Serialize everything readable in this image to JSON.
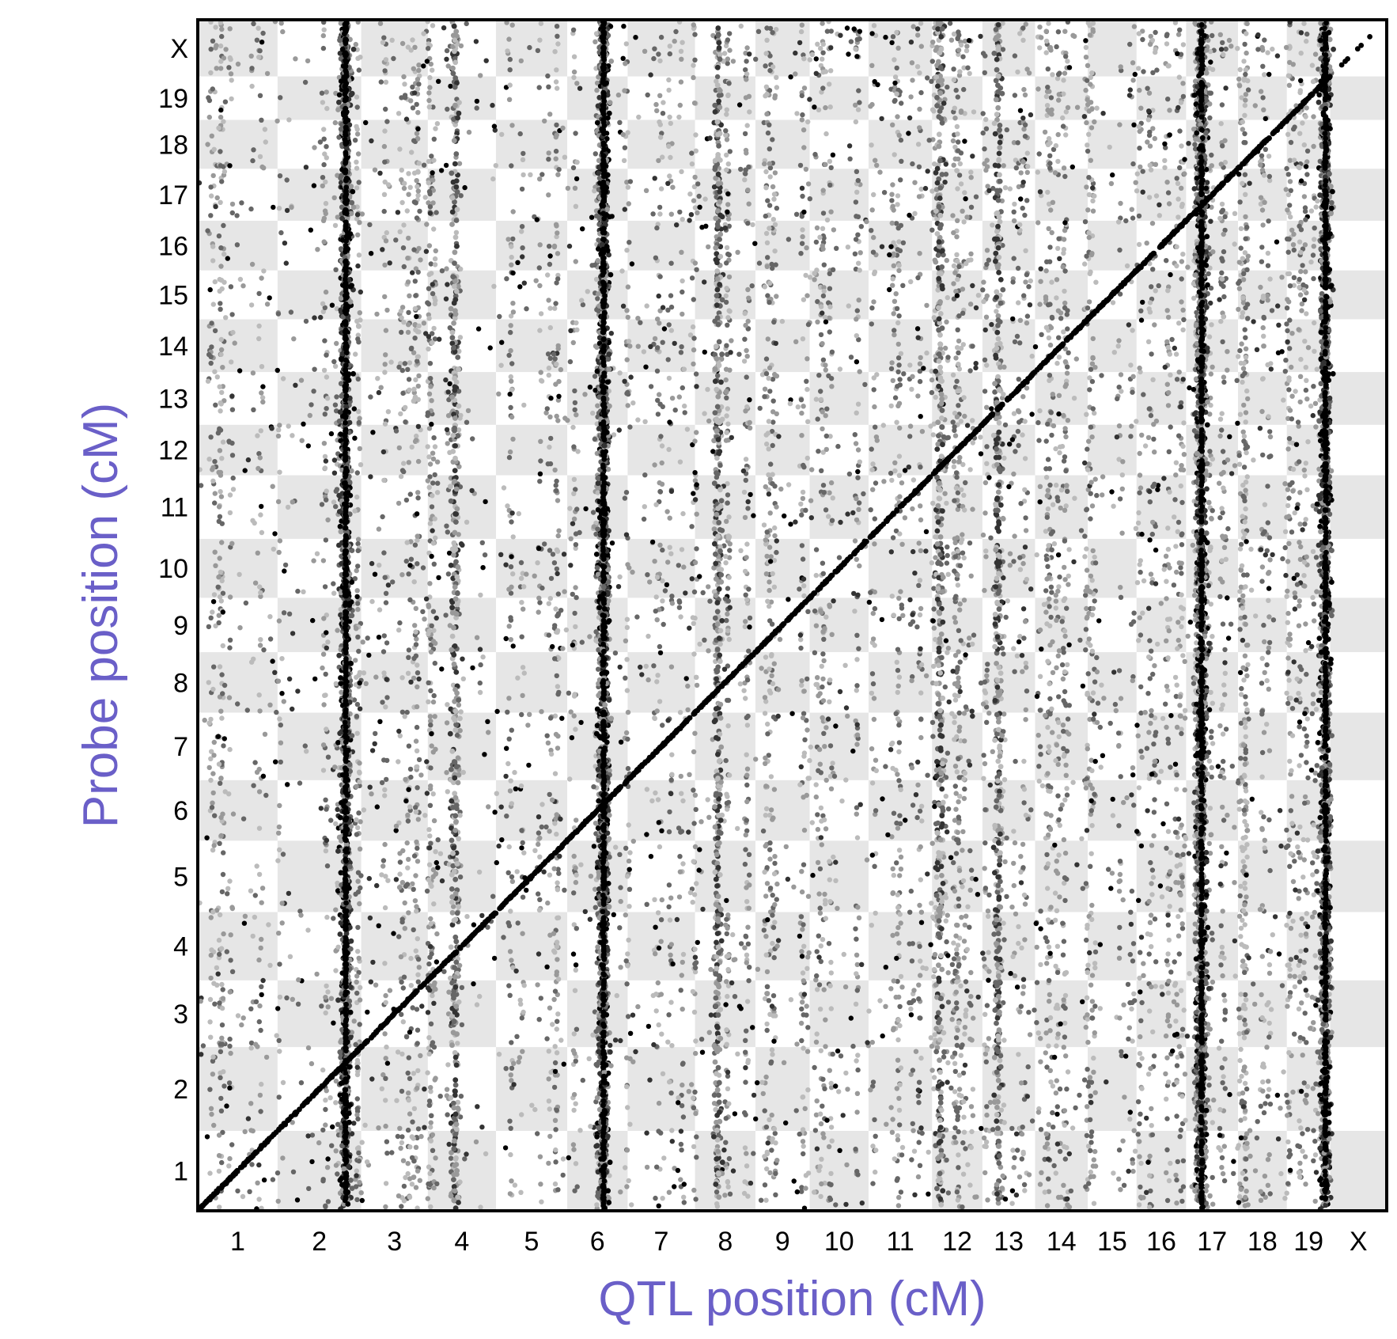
{
  "chart_data": {
    "type": "scatter",
    "title": "",
    "xlabel": "QTL position (cM)",
    "ylabel": "Probe position (cM)",
    "chromosomes": [
      "1",
      "2",
      "3",
      "4",
      "5",
      "6",
      "7",
      "8",
      "9",
      "10",
      "11",
      "12",
      "13",
      "14",
      "15",
      "16",
      "17",
      "18",
      "19",
      "X"
    ],
    "chromosome_lengths_cM": [
      103,
      108,
      86,
      88,
      92,
      78,
      87,
      78,
      70,
      76,
      82,
      65,
      68,
      68,
      63,
      64,
      67,
      63,
      56,
      73
    ],
    "x_tick_labels": [
      "1",
      "2",
      "3",
      "4",
      "5",
      "6",
      "7",
      "8",
      "9",
      "10",
      "11",
      "12",
      "13",
      "14",
      "15",
      "16",
      "17",
      "18",
      "19",
      "X"
    ],
    "y_tick_labels": [
      "1",
      "2",
      "3",
      "4",
      "5",
      "6",
      "7",
      "8",
      "9",
      "10",
      "11",
      "12",
      "13",
      "14",
      "15",
      "16",
      "17",
      "18",
      "19",
      "X"
    ],
    "background": "alternating gray/white checkerboard by chromosome",
    "grid": false,
    "legend": "none",
    "point_shades": [
      "#000000",
      "#333333",
      "#666666",
      "#999999",
      "#bbbbbb"
    ],
    "series": [
      {
        "kind": "cis-diagonal",
        "description_values": "points along the diagonal where QTL position equals probe position, across all chromosomes",
        "x_range_cM_cumulative": [
          0,
          1563
        ]
      },
      {
        "kind": "trans-band",
        "qtl_chromosome": "2",
        "qtl_position_cM": 88,
        "spans_all_probe_chromosomes": true
      },
      {
        "kind": "trans-band",
        "qtl_chromosome": "6",
        "qtl_position_cM": 47,
        "spans_all_probe_chromosomes": true
      },
      {
        "kind": "trans-band",
        "qtl_chromosome": "17",
        "qtl_position_cM": 20,
        "spans_all_probe_chromosomes": true
      },
      {
        "kind": "trans-band",
        "qtl_chromosome": "19",
        "qtl_position_cM": 50,
        "spans_all_probe_chromosomes": true
      },
      {
        "kind": "trans-band-weak",
        "qtl_chromosome": "12",
        "qtl_position_cM": 10,
        "spans_all_probe_chromosomes": true
      },
      {
        "kind": "trans-band-weak",
        "qtl_chromosome": "4",
        "qtl_position_cM": 35,
        "spans_all_probe_chromosomes": true
      },
      {
        "kind": "trans-band-weak",
        "qtl_chromosome": "8",
        "qtl_position_cM": 30,
        "spans_all_probe_chromosomes": true
      },
      {
        "kind": "trans-band-weak",
        "qtl_chromosome": "13",
        "qtl_position_cM": 20,
        "spans_all_probe_chromosomes": true
      }
    ]
  },
  "colors": {
    "axis_title": "#6a5fc8",
    "band_gray": "#e6e6e6",
    "frame": "#000000"
  }
}
